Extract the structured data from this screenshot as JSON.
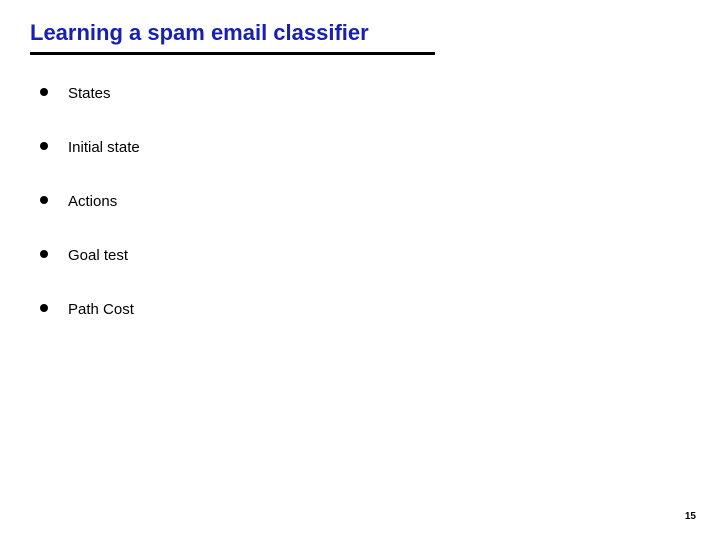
{
  "title": "Learning a spam email classifier",
  "title_color": "#1720b0",
  "title_fontsize": 22,
  "underline_color": "#000000",
  "underline_width": 405,
  "bullets": [
    "States",
    "Initial state",
    "Actions",
    "Goal test",
    "Path Cost"
  ],
  "bullet_text_color": "#000000",
  "bullet_fontsize": 15,
  "bullet_dot_color": "#000000",
  "bullet_spacing": 36,
  "page_number": "15",
  "page_number_fontsize": 10,
  "background_color": "#ffffff",
  "font_family": "Verdana, Geneva, sans-serif"
}
